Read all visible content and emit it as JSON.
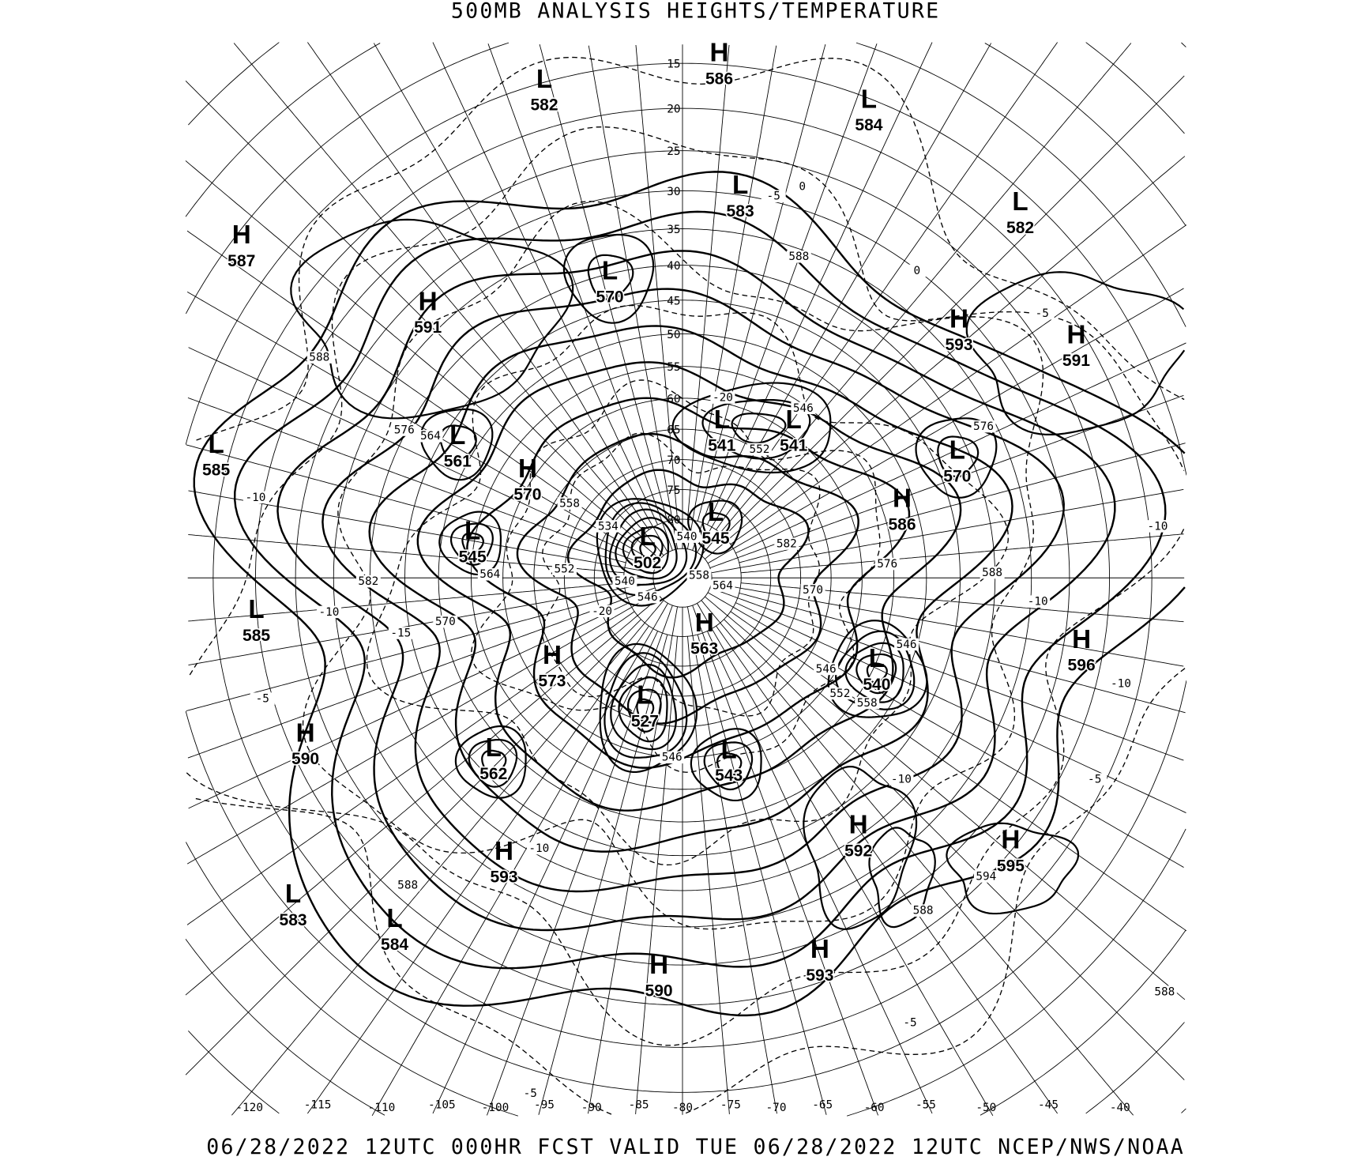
{
  "title": "500MB ANALYSIS  HEIGHTS/TEMPERATURE",
  "footer": "06/28/2022 12UTC 000HR FCST VALID TUE 06/28/2022 12UTC  NCEP/NWS/NOAA",
  "map": {
    "projection": "polar stereographic (north pole)",
    "height_contour_style": "solid",
    "temperature_contour_style": "dashed",
    "line_color": "#000000",
    "background": "#ffffff",
    "latitude_labels": [
      "15",
      "20",
      "25",
      "30",
      "35",
      "40",
      "45",
      "50",
      "55",
      "60",
      "65",
      "70",
      "75",
      "80"
    ],
    "longitude_labels": [
      "-120",
      "-115",
      "-110",
      "-105",
      "-100",
      "-95",
      "-90",
      "-85",
      "-80",
      "-75",
      "-70",
      "-65",
      "-60",
      "-55",
      "-50",
      "-45",
      "-40"
    ],
    "centers": [
      {
        "type": "L",
        "value": "582"
      },
      {
        "type": "H",
        "value": "586"
      },
      {
        "type": "L",
        "value": "584"
      },
      {
        "type": "L",
        "value": "583"
      },
      {
        "type": "L",
        "value": "582"
      },
      {
        "type": "H",
        "value": "587"
      },
      {
        "type": "L",
        "value": "570"
      },
      {
        "type": "H",
        "value": "591"
      },
      {
        "type": "H",
        "value": "593"
      },
      {
        "type": "H",
        "value": "591"
      },
      {
        "type": "L",
        "value": "541"
      },
      {
        "type": "L",
        "value": "541"
      },
      {
        "type": "L",
        "value": "561"
      },
      {
        "type": "L",
        "value": "585"
      },
      {
        "type": "L",
        "value": "570"
      },
      {
        "type": "H",
        "value": "570"
      },
      {
        "type": "H",
        "value": "586"
      },
      {
        "type": "L",
        "value": "545"
      },
      {
        "type": "L",
        "value": "545"
      },
      {
        "type": "L",
        "value": "502"
      },
      {
        "type": "L",
        "value": "585"
      },
      {
        "type": "H",
        "value": "563"
      },
      {
        "type": "L",
        "value": "540"
      },
      {
        "type": "H",
        "value": "596"
      },
      {
        "type": "H",
        "value": "573"
      },
      {
        "type": "L",
        "value": "527"
      },
      {
        "type": "H",
        "value": "590"
      },
      {
        "type": "L",
        "value": "562"
      },
      {
        "type": "L",
        "value": "543"
      },
      {
        "type": "H",
        "value": "592"
      },
      {
        "type": "H",
        "value": "595"
      },
      {
        "type": "H",
        "value": "593"
      },
      {
        "type": "L",
        "value": "583"
      },
      {
        "type": "L",
        "value": "584"
      },
      {
        "type": "H",
        "value": "590"
      },
      {
        "type": "H",
        "value": "593"
      }
    ],
    "height_labels": [
      "588",
      "588",
      "576",
      "564",
      "558",
      "582",
      "570",
      "564",
      "552",
      "540",
      "546",
      "558",
      "564",
      "582",
      "576",
      "570",
      "588",
      "546",
      "546",
      "552",
      "558",
      "546",
      "546",
      "552",
      "576",
      "594",
      "588",
      "588",
      "588",
      "534",
      "540"
    ],
    "temperature_labels": [
      "0",
      "-5",
      "0",
      "-5",
      "-10",
      "-10",
      "-10",
      "-10",
      "-15",
      "-5",
      "-10",
      "-10",
      "-5",
      "-10",
      "-5",
      "-5",
      "-20",
      "-20"
    ]
  }
}
